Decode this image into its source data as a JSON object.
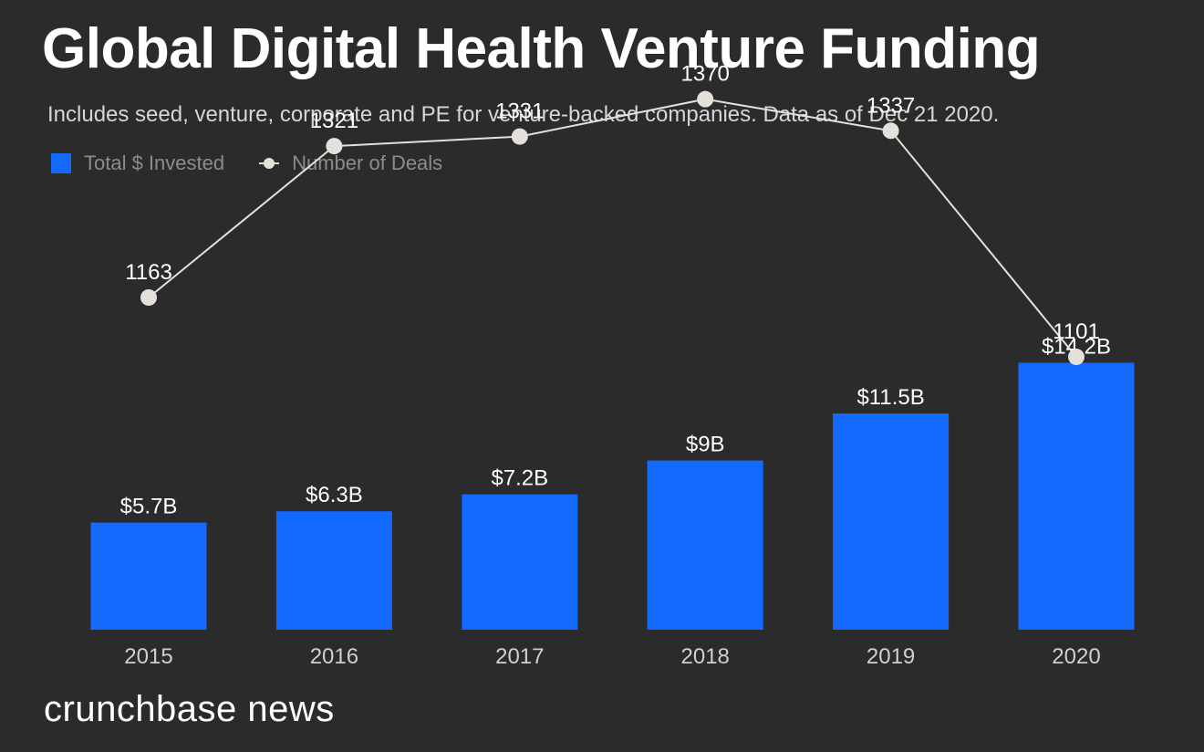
{
  "colors": {
    "background": "#2b2b2b",
    "bar": "#1469ff",
    "line": "#e3e1d9",
    "text": "#ffffff",
    "muted": "#8c8c8c"
  },
  "brand": "crunchbase news",
  "chart_data": {
    "type": "bar",
    "title": "Global Digital Health Venture Funding",
    "subtitle": "Includes seed, venture, corporate and PE for venture-backed companies. Data as of Dec 21 2020.",
    "legend": [
      "Total $ Invested",
      "Number of Deals"
    ],
    "categories": [
      "2015",
      "2016",
      "2017",
      "2018",
      "2019",
      "2020"
    ],
    "series": [
      {
        "name": "Total $ Invested",
        "type": "bar",
        "values": [
          5.7,
          6.3,
          7.2,
          9,
          11.5,
          14.2
        ],
        "labels": [
          "$5.7B",
          "$6.3B",
          "$7.2B",
          "$9B",
          "$11.5B",
          "$14.2B"
        ]
      },
      {
        "name": "Number of Deals",
        "type": "line",
        "values": [
          1163,
          1321,
          1331,
          1370,
          1337,
          1101
        ],
        "labels": [
          "1163",
          "1321",
          "1331",
          "1370",
          "1337",
          "1101"
        ]
      }
    ],
    "grid": false,
    "legend_position": "top-left"
  }
}
